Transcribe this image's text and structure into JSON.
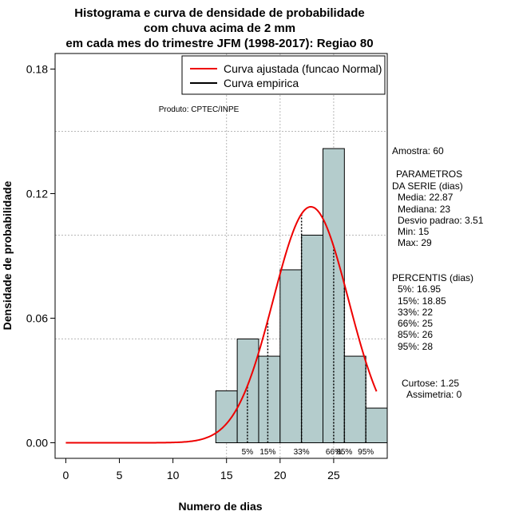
{
  "chart_data": {
    "type": "bar",
    "title": [
      "Histograma e curva de densidade de probabilidade",
      "com chuva acima de 2 mm",
      "em cada mes do trimestre JFM (1998-2017): Regiao 80"
    ],
    "xlabel": "Numero de dias",
    "ylabel": "Densidade de probabilidade",
    "xlim": [
      -1,
      30
    ],
    "ylim": [
      -0.0075,
      0.1875
    ],
    "x_ticks": [
      0,
      5,
      10,
      15,
      20,
      25
    ],
    "y_ticks": [
      0.0,
      0.06,
      0.12,
      0.18
    ],
    "y_tick_labels": [
      "0.00",
      "0.06",
      "0.12",
      "0.18"
    ],
    "grid_x": [
      15,
      20,
      25
    ],
    "grid_y": [
      0.05,
      0.1,
      0.15
    ],
    "bin_edges": [
      14,
      16,
      18,
      20,
      22,
      24,
      26,
      28,
      30
    ],
    "values": [
      0.025,
      0.05,
      0.0417,
      0.0833,
      0.1,
      0.1417,
      0.0417,
      0.0167
    ],
    "bar_color": "#b4cccc",
    "fitted_curve": {
      "name": "Curva ajustada (funcao Normal)",
      "distribution": "normal",
      "mean": 22.87,
      "sd": 3.51,
      "x_range": [
        0,
        29
      ],
      "color": "#ee0000"
    },
    "empirical_curve": {
      "name": "Curva empirica",
      "color": "#000000"
    },
    "legend_position": "top-right",
    "percentiles": [
      {
        "x": 16.95,
        "label": "5%"
      },
      {
        "x": 18.85,
        "label": "15%"
      },
      {
        "x": 22,
        "label": "33%"
      },
      {
        "x": 25,
        "label": "66%"
      },
      {
        "x": 26,
        "label": "85%"
      },
      {
        "x": 28,
        "label": "95%"
      }
    ],
    "annotation": "Produto: CPTEC/INPE"
  },
  "side_panel": {
    "amostra": "Amostra: 60",
    "params_title_1": "PARAMETROS",
    "params_title_2": "DA SERIE (dias)",
    "media": "Media: 22.87",
    "mediana": "Mediana: 23",
    "desvio": "Desvio padrao: 3.51",
    "min": "Min: 15",
    "max": "Max: 29",
    "percentis_title": "PERCENTIS (dias)",
    "p5": "5%: 16.95",
    "p15": "15%: 18.85",
    "p33": "33%: 22",
    "p66": "66%: 25",
    "p85": "85%: 26",
    "p95": "95%: 28",
    "curtose": "Curtose: 1.25",
    "assimetria": "Assimetria: 0"
  }
}
